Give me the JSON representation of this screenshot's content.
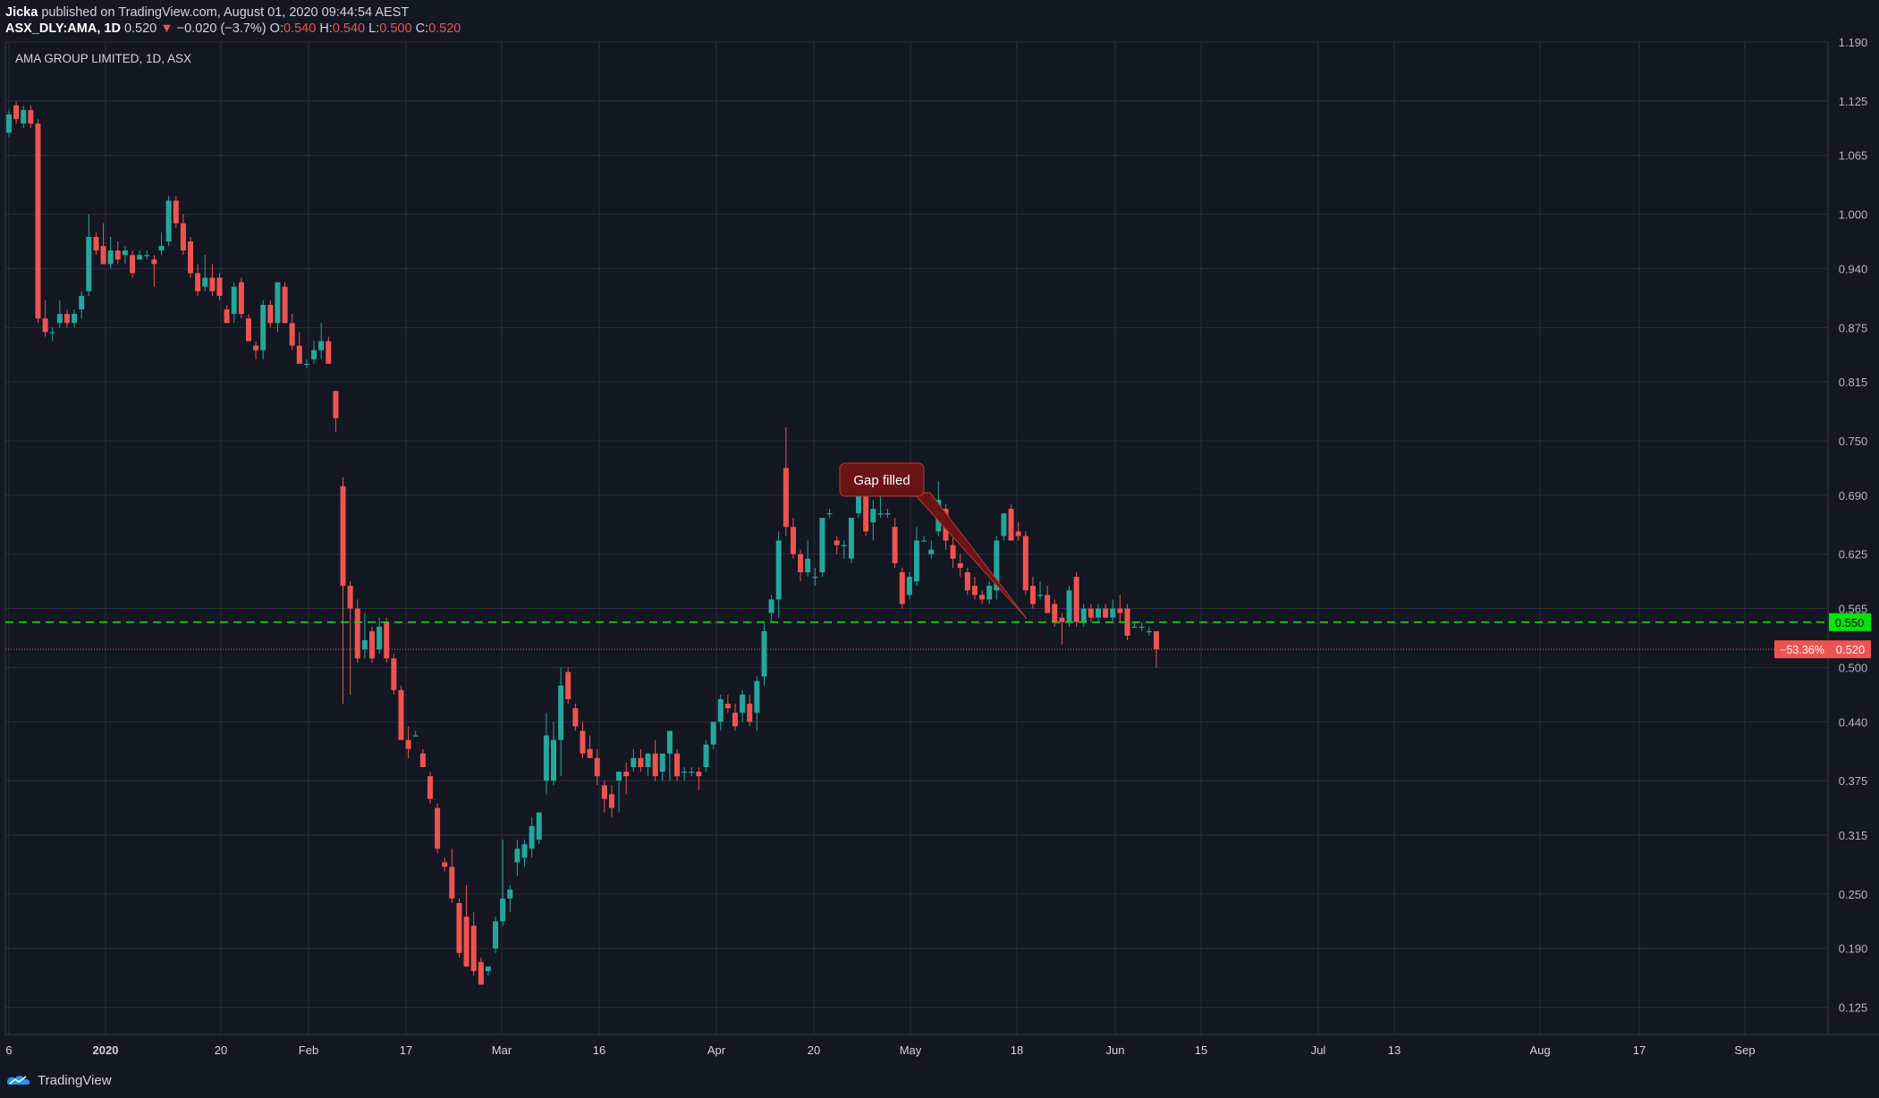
{
  "header": {
    "author": "Jicka",
    "published_text": "published on TradingView.com, August 01, 2020 09:44:54 AEST",
    "symbol": "ASX_DLY:AMA, 1D",
    "last": "0.520",
    "change_arrow": "▼",
    "change": "−0.020 (−3.7%)",
    "o_label": "O:",
    "o_value": "0.540",
    "h_label": "H:",
    "h_value": "0.540",
    "l_label": "L:",
    "l_value": "0.500",
    "c_label": "C:",
    "c_value": "0.520"
  },
  "footer": {
    "brand": "TradingView",
    "icon": "tradingview-logo-icon"
  },
  "colors": {
    "background": "#131722",
    "up": "#26a69a",
    "down": "#ef5350",
    "grid": "#2a2e39",
    "level_line": "#00e600",
    "annotation": "#6b1414"
  },
  "chart_data": {
    "type": "candlestick",
    "title": "AMA GROUP LIMITED, 1D, ASX",
    "ylim": [
      0.095,
      1.19
    ],
    "y_ticks": [
      "1.190",
      "1.125",
      "1.065",
      "1.000",
      "0.940",
      "0.875",
      "0.815",
      "0.750",
      "0.690",
      "0.625",
      "0.565",
      "0.500",
      "0.440",
      "0.375",
      "0.315",
      "0.250",
      "0.190",
      "0.125"
    ],
    "x_ticks": [
      "6",
      "2020",
      "20",
      "Feb",
      "17",
      "Mar",
      "16",
      "Apr",
      "20",
      "May",
      "18",
      "Jun",
      "15",
      "Jul",
      "13",
      "Aug",
      "17",
      "Sep"
    ],
    "candles": [
      {
        "o": 1.09,
        "h": 1.115,
        "l": 1.085,
        "c": 1.11
      },
      {
        "o": 1.12,
        "h": 1.125,
        "l": 1.1,
        "c": 1.105
      },
      {
        "o": 1.1,
        "h": 1.12,
        "l": 1.095,
        "c": 1.115
      },
      {
        "o": 1.115,
        "h": 1.12,
        "l": 1.095,
        "c": 1.1
      },
      {
        "o": 1.1,
        "h": 1.105,
        "l": 0.88,
        "c": 0.885
      },
      {
        "o": 0.885,
        "h": 0.905,
        "l": 0.865,
        "c": 0.87
      },
      {
        "o": 0.87,
        "h": 0.875,
        "l": 0.86,
        "c": 0.87
      },
      {
        "o": 0.88,
        "h": 0.905,
        "l": 0.875,
        "c": 0.89
      },
      {
        "o": 0.89,
        "h": 0.895,
        "l": 0.875,
        "c": 0.88
      },
      {
        "o": 0.88,
        "h": 0.895,
        "l": 0.875,
        "c": 0.89
      },
      {
        "o": 0.895,
        "h": 0.915,
        "l": 0.885,
        "c": 0.91
      },
      {
        "o": 0.915,
        "h": 1.0,
        "l": 0.91,
        "c": 0.975
      },
      {
        "o": 0.975,
        "h": 0.98,
        "l": 0.955,
        "c": 0.96
      },
      {
        "o": 0.965,
        "h": 0.99,
        "l": 0.945,
        "c": 0.945
      },
      {
        "o": 0.945,
        "h": 0.975,
        "l": 0.94,
        "c": 0.96
      },
      {
        "o": 0.96,
        "h": 0.97,
        "l": 0.945,
        "c": 0.95
      },
      {
        "o": 0.955,
        "h": 0.965,
        "l": 0.945,
        "c": 0.96
      },
      {
        "o": 0.955,
        "h": 0.96,
        "l": 0.93,
        "c": 0.935
      },
      {
        "o": 0.95,
        "h": 0.96,
        "l": 0.95,
        "c": 0.955
      },
      {
        "o": 0.955,
        "h": 0.96,
        "l": 0.95,
        "c": 0.955
      },
      {
        "o": 0.95,
        "h": 0.955,
        "l": 0.92,
        "c": 0.945
      },
      {
        "o": 0.96,
        "h": 0.98,
        "l": 0.955,
        "c": 0.965
      },
      {
        "o": 0.97,
        "h": 1.02,
        "l": 0.965,
        "c": 1.015
      },
      {
        "o": 1.015,
        "h": 1.02,
        "l": 0.985,
        "c": 0.99
      },
      {
        "o": 0.99,
        "h": 1.0,
        "l": 0.955,
        "c": 0.96
      },
      {
        "o": 0.97,
        "h": 0.975,
        "l": 0.93,
        "c": 0.935
      },
      {
        "o": 0.935,
        "h": 0.945,
        "l": 0.91,
        "c": 0.915
      },
      {
        "o": 0.92,
        "h": 0.955,
        "l": 0.915,
        "c": 0.93
      },
      {
        "o": 0.93,
        "h": 0.945,
        "l": 0.91,
        "c": 0.915
      },
      {
        "o": 0.93,
        "h": 0.935,
        "l": 0.905,
        "c": 0.91
      },
      {
        "o": 0.895,
        "h": 0.9,
        "l": 0.88,
        "c": 0.88
      },
      {
        "o": 0.89,
        "h": 0.925,
        "l": 0.88,
        "c": 0.92
      },
      {
        "o": 0.925,
        "h": 0.93,
        "l": 0.885,
        "c": 0.89
      },
      {
        "o": 0.885,
        "h": 0.89,
        "l": 0.86,
        "c": 0.86
      },
      {
        "o": 0.855,
        "h": 0.86,
        "l": 0.84,
        "c": 0.85
      },
      {
        "o": 0.85,
        "h": 0.905,
        "l": 0.84,
        "c": 0.9
      },
      {
        "o": 0.9,
        "h": 0.905,
        "l": 0.875,
        "c": 0.88
      },
      {
        "o": 0.88,
        "h": 0.92,
        "l": 0.87,
        "c": 0.925
      },
      {
        "o": 0.92,
        "h": 0.925,
        "l": 0.88,
        "c": 0.88
      },
      {
        "o": 0.88,
        "h": 0.89,
        "l": 0.85,
        "c": 0.855
      },
      {
        "o": 0.855,
        "h": 0.87,
        "l": 0.835,
        "c": 0.835
      },
      {
        "o": 0.835,
        "h": 0.84,
        "l": 0.83,
        "c": 0.835
      },
      {
        "o": 0.84,
        "h": 0.86,
        "l": 0.835,
        "c": 0.85
      },
      {
        "o": 0.85,
        "h": 0.88,
        "l": 0.84,
        "c": 0.86
      },
      {
        "o": 0.86,
        "h": 0.865,
        "l": 0.835,
        "c": 0.835
      },
      {
        "o": 0.805,
        "h": 0.805,
        "l": 0.76,
        "c": 0.775
      },
      {
        "o": 0.7,
        "h": 0.71,
        "l": 0.46,
        "c": 0.59
      },
      {
        "o": 0.59,
        "h": 0.595,
        "l": 0.47,
        "c": 0.565
      },
      {
        "o": 0.565,
        "h": 0.575,
        "l": 0.505,
        "c": 0.51
      },
      {
        "o": 0.52,
        "h": 0.56,
        "l": 0.51,
        "c": 0.53
      },
      {
        "o": 0.54,
        "h": 0.545,
        "l": 0.505,
        "c": 0.51
      },
      {
        "o": 0.52,
        "h": 0.555,
        "l": 0.515,
        "c": 0.545
      },
      {
        "o": 0.55,
        "h": 0.555,
        "l": 0.505,
        "c": 0.51
      },
      {
        "o": 0.51,
        "h": 0.515,
        "l": 0.47,
        "c": 0.475
      },
      {
        "o": 0.475,
        "h": 0.48,
        "l": 0.42,
        "c": 0.42
      },
      {
        "o": 0.42,
        "h": 0.435,
        "l": 0.4,
        "c": 0.41
      },
      {
        "o": 0.425,
        "h": 0.43,
        "l": 0.425,
        "c": 0.425
      },
      {
        "o": 0.405,
        "h": 0.41,
        "l": 0.39,
        "c": 0.39
      },
      {
        "o": 0.38,
        "h": 0.385,
        "l": 0.35,
        "c": 0.355
      },
      {
        "o": 0.345,
        "h": 0.35,
        "l": 0.295,
        "c": 0.3
      },
      {
        "o": 0.285,
        "h": 0.29,
        "l": 0.275,
        "c": 0.28
      },
      {
        "o": 0.28,
        "h": 0.3,
        "l": 0.24,
        "c": 0.245
      },
      {
        "o": 0.24,
        "h": 0.245,
        "l": 0.18,
        "c": 0.185
      },
      {
        "o": 0.225,
        "h": 0.26,
        "l": 0.17,
        "c": 0.17
      },
      {
        "o": 0.215,
        "h": 0.23,
        "l": 0.16,
        "c": 0.165
      },
      {
        "o": 0.175,
        "h": 0.18,
        "l": 0.15,
        "c": 0.15
      },
      {
        "o": 0.165,
        "h": 0.17,
        "l": 0.16,
        "c": 0.17
      },
      {
        "o": 0.19,
        "h": 0.225,
        "l": 0.185,
        "c": 0.22
      },
      {
        "o": 0.22,
        "h": 0.31,
        "l": 0.215,
        "c": 0.245
      },
      {
        "o": 0.245,
        "h": 0.26,
        "l": 0.23,
        "c": 0.255
      },
      {
        "o": 0.285,
        "h": 0.31,
        "l": 0.27,
        "c": 0.3
      },
      {
        "o": 0.29,
        "h": 0.31,
        "l": 0.28,
        "c": 0.305
      },
      {
        "o": 0.3,
        "h": 0.335,
        "l": 0.29,
        "c": 0.325
      },
      {
        "o": 0.31,
        "h": 0.34,
        "l": 0.305,
        "c": 0.34
      },
      {
        "o": 0.375,
        "h": 0.45,
        "l": 0.36,
        "c": 0.425
      },
      {
        "o": 0.375,
        "h": 0.44,
        "l": 0.37,
        "c": 0.42
      },
      {
        "o": 0.42,
        "h": 0.5,
        "l": 0.38,
        "c": 0.48
      },
      {
        "o": 0.495,
        "h": 0.5,
        "l": 0.46,
        "c": 0.465
      },
      {
        "o": 0.455,
        "h": 0.46,
        "l": 0.43,
        "c": 0.435
      },
      {
        "o": 0.43,
        "h": 0.44,
        "l": 0.4,
        "c": 0.405
      },
      {
        "o": 0.41,
        "h": 0.425,
        "l": 0.4,
        "c": 0.4
      },
      {
        "o": 0.4,
        "h": 0.41,
        "l": 0.37,
        "c": 0.38
      },
      {
        "o": 0.37,
        "h": 0.375,
        "l": 0.34,
        "c": 0.355
      },
      {
        "o": 0.36,
        "h": 0.37,
        "l": 0.335,
        "c": 0.345
      },
      {
        "o": 0.375,
        "h": 0.38,
        "l": 0.34,
        "c": 0.385
      },
      {
        "o": 0.385,
        "h": 0.395,
        "l": 0.36,
        "c": 0.38
      },
      {
        "o": 0.39,
        "h": 0.41,
        "l": 0.385,
        "c": 0.4
      },
      {
        "o": 0.4,
        "h": 0.41,
        "l": 0.385,
        "c": 0.39
      },
      {
        "o": 0.39,
        "h": 0.405,
        "l": 0.38,
        "c": 0.405
      },
      {
        "o": 0.405,
        "h": 0.42,
        "l": 0.375,
        "c": 0.38
      },
      {
        "o": 0.385,
        "h": 0.4,
        "l": 0.375,
        "c": 0.405
      },
      {
        "o": 0.405,
        "h": 0.43,
        "l": 0.375,
        "c": 0.43
      },
      {
        "o": 0.405,
        "h": 0.41,
        "l": 0.375,
        "c": 0.38
      },
      {
        "o": 0.385,
        "h": 0.39,
        "l": 0.375,
        "c": 0.385
      },
      {
        "o": 0.385,
        "h": 0.39,
        "l": 0.38,
        "c": 0.385
      },
      {
        "o": 0.385,
        "h": 0.39,
        "l": 0.365,
        "c": 0.38
      },
      {
        "o": 0.39,
        "h": 0.42,
        "l": 0.385,
        "c": 0.415
      },
      {
        "o": 0.415,
        "h": 0.44,
        "l": 0.41,
        "c": 0.44
      },
      {
        "o": 0.44,
        "h": 0.47,
        "l": 0.43,
        "c": 0.465
      },
      {
        "o": 0.46,
        "h": 0.47,
        "l": 0.45,
        "c": 0.455
      },
      {
        "o": 0.45,
        "h": 0.46,
        "l": 0.43,
        "c": 0.435
      },
      {
        "o": 0.45,
        "h": 0.475,
        "l": 0.44,
        "c": 0.47
      },
      {
        "o": 0.46,
        "h": 0.47,
        "l": 0.435,
        "c": 0.44
      },
      {
        "o": 0.45,
        "h": 0.49,
        "l": 0.43,
        "c": 0.485
      },
      {
        "o": 0.49,
        "h": 0.55,
        "l": 0.48,
        "c": 0.54
      },
      {
        "o": 0.56,
        "h": 0.58,
        "l": 0.55,
        "c": 0.575
      },
      {
        "o": 0.575,
        "h": 0.65,
        "l": 0.555,
        "c": 0.64
      },
      {
        "o": 0.72,
        "h": 0.765,
        "l": 0.645,
        "c": 0.655
      },
      {
        "o": 0.655,
        "h": 0.665,
        "l": 0.62,
        "c": 0.625
      },
      {
        "o": 0.625,
        "h": 0.63,
        "l": 0.595,
        "c": 0.605
      },
      {
        "o": 0.605,
        "h": 0.64,
        "l": 0.6,
        "c": 0.62
      },
      {
        "o": 0.6,
        "h": 0.61,
        "l": 0.59,
        "c": 0.6
      },
      {
        "o": 0.605,
        "h": 0.665,
        "l": 0.6,
        "c": 0.665
      },
      {
        "o": 0.67,
        "h": 0.675,
        "l": 0.665,
        "c": 0.67
      },
      {
        "o": 0.64,
        "h": 0.645,
        "l": 0.625,
        "c": 0.635
      },
      {
        "o": 0.635,
        "h": 0.64,
        "l": 0.62,
        "c": 0.635
      },
      {
        "o": 0.62,
        "h": 0.665,
        "l": 0.615,
        "c": 0.665
      },
      {
        "o": 0.67,
        "h": 0.705,
        "l": 0.665,
        "c": 0.7
      },
      {
        "o": 0.71,
        "h": 0.72,
        "l": 0.645,
        "c": 0.65
      },
      {
        "o": 0.66,
        "h": 0.685,
        "l": 0.64,
        "c": 0.675
      },
      {
        "o": 0.67,
        "h": 0.695,
        "l": 0.665,
        "c": 0.67
      },
      {
        "o": 0.67,
        "h": 0.675,
        "l": 0.665,
        "c": 0.67
      },
      {
        "o": 0.655,
        "h": 0.665,
        "l": 0.61,
        "c": 0.615
      },
      {
        "o": 0.605,
        "h": 0.61,
        "l": 0.565,
        "c": 0.57
      },
      {
        "o": 0.58,
        "h": 0.605,
        "l": 0.575,
        "c": 0.6
      },
      {
        "o": 0.595,
        "h": 0.655,
        "l": 0.59,
        "c": 0.64
      },
      {
        "o": 0.64,
        "h": 0.645,
        "l": 0.64,
        "c": 0.64
      },
      {
        "o": 0.625,
        "h": 0.64,
        "l": 0.62,
        "c": 0.63
      },
      {
        "o": 0.65,
        "h": 0.705,
        "l": 0.645,
        "c": 0.685
      },
      {
        "o": 0.675,
        "h": 0.68,
        "l": 0.63,
        "c": 0.64
      },
      {
        "o": 0.635,
        "h": 0.645,
        "l": 0.61,
        "c": 0.62
      },
      {
        "o": 0.615,
        "h": 0.625,
        "l": 0.6,
        "c": 0.61
      },
      {
        "o": 0.605,
        "h": 0.61,
        "l": 0.58,
        "c": 0.585
      },
      {
        "o": 0.59,
        "h": 0.6,
        "l": 0.575,
        "c": 0.58
      },
      {
        "o": 0.58,
        "h": 0.585,
        "l": 0.57,
        "c": 0.575
      },
      {
        "o": 0.575,
        "h": 0.595,
        "l": 0.57,
        "c": 0.59
      },
      {
        "o": 0.585,
        "h": 0.645,
        "l": 0.575,
        "c": 0.64
      },
      {
        "o": 0.645,
        "h": 0.67,
        "l": 0.64,
        "c": 0.67
      },
      {
        "o": 0.675,
        "h": 0.68,
        "l": 0.64,
        "c": 0.64
      },
      {
        "o": 0.65,
        "h": 0.66,
        "l": 0.64,
        "c": 0.645
      },
      {
        "o": 0.645,
        "h": 0.65,
        "l": 0.58,
        "c": 0.585
      },
      {
        "o": 0.59,
        "h": 0.6,
        "l": 0.565,
        "c": 0.57
      },
      {
        "o": 0.58,
        "h": 0.595,
        "l": 0.575,
        "c": 0.58
      },
      {
        "o": 0.58,
        "h": 0.59,
        "l": 0.56,
        "c": 0.56
      },
      {
        "o": 0.57,
        "h": 0.575,
        "l": 0.545,
        "c": 0.55
      },
      {
        "o": 0.555,
        "h": 0.56,
        "l": 0.525,
        "c": 0.55
      },
      {
        "o": 0.55,
        "h": 0.59,
        "l": 0.545,
        "c": 0.585
      },
      {
        "o": 0.6,
        "h": 0.605,
        "l": 0.545,
        "c": 0.55
      },
      {
        "o": 0.55,
        "h": 0.57,
        "l": 0.545,
        "c": 0.565
      },
      {
        "o": 0.565,
        "h": 0.57,
        "l": 0.55,
        "c": 0.555
      },
      {
        "o": 0.555,
        "h": 0.57,
        "l": 0.55,
        "c": 0.565
      },
      {
        "o": 0.565,
        "h": 0.57,
        "l": 0.555,
        "c": 0.555
      },
      {
        "o": 0.555,
        "h": 0.575,
        "l": 0.55,
        "c": 0.565
      },
      {
        "o": 0.565,
        "h": 0.58,
        "l": 0.55,
        "c": 0.56
      },
      {
        "o": 0.565,
        "h": 0.57,
        "l": 0.53,
        "c": 0.535
      },
      {
        "o": 0.545,
        "h": 0.55,
        "l": 0.545,
        "c": 0.545
      },
      {
        "o": 0.545,
        "h": 0.55,
        "l": 0.54,
        "c": 0.545
      },
      {
        "o": 0.54,
        "h": 0.545,
        "l": 0.535,
        "c": 0.54
      },
      {
        "o": 0.54,
        "h": 0.54,
        "l": 0.5,
        "c": 0.52
      }
    ],
    "levels": [
      {
        "value": 0.55,
        "label": "0.550",
        "style": "dashed",
        "color": "#00e600"
      },
      {
        "value": 0.52,
        "label": "0.520",
        "pct": "−53.36%",
        "style": "dotted",
        "color": "#ef5350"
      }
    ],
    "annotation": {
      "text": "Gap filled"
    }
  }
}
